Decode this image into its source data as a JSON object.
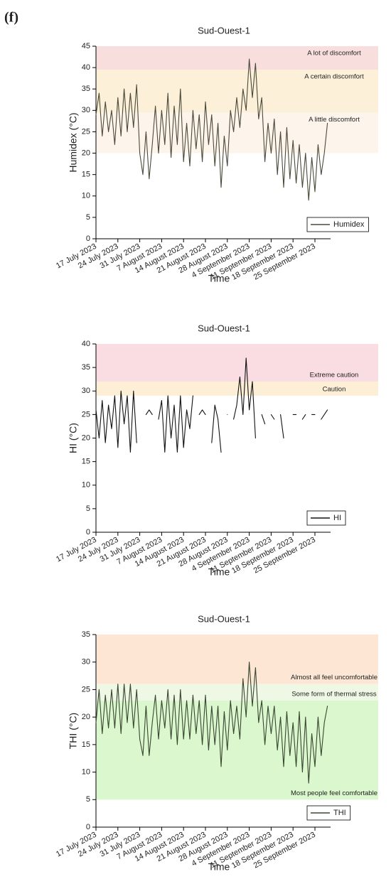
{
  "panel_label": "(f)",
  "chart_data": [
    {
      "type": "line",
      "title": "Sud-Ouest-1",
      "xlabel": "Time",
      "ylabel": "Humidex (°C)",
      "legend": "lower right",
      "x": [
        0,
        1,
        2,
        3,
        4,
        5,
        6,
        7,
        8,
        9,
        10,
        11,
        12,
        13,
        14,
        15,
        16,
        17,
        18,
        19,
        20,
        21,
        22,
        23,
        24,
        25,
        26,
        27,
        28,
        29,
        30,
        31,
        32,
        33,
        34,
        35,
        36,
        37,
        38,
        39,
        40,
        41,
        42,
        43,
        44,
        45,
        46,
        47,
        48,
        49,
        50,
        51,
        52,
        53,
        54,
        55,
        56,
        57,
        58,
        59,
        60,
        61,
        62,
        63,
        64,
        65,
        66,
        67,
        68,
        69,
        70,
        71,
        72,
        73,
        74
      ],
      "series": [
        {
          "name": "Humidex",
          "color": "#4a4a3a",
          "values": [
            29,
            34,
            24,
            32,
            25,
            30,
            22,
            33,
            24,
            35,
            25,
            34,
            26,
            36,
            20,
            15,
            25,
            14,
            22,
            31,
            20,
            30,
            22,
            34,
            19,
            31,
            22,
            35,
            18,
            27,
            17,
            30,
            21,
            29,
            18,
            32,
            22,
            29,
            17,
            27,
            12,
            24,
            17,
            30,
            25,
            33,
            26,
            35,
            30,
            42,
            33,
            41,
            28,
            33,
            18,
            27,
            20,
            28,
            15,
            25,
            12,
            26,
            14,
            23,
            13,
            22,
            12,
            20,
            9,
            19,
            11,
            22,
            15,
            20,
            27
          ]
        }
      ],
      "xlim": [
        0,
        75
      ],
      "ylim": [
        0,
        45
      ],
      "xticks": [
        {
          "value": 0,
          "label": "17 July 2023"
        },
        {
          "value": 7,
          "label": "24 July 2023"
        },
        {
          "value": 14,
          "label": "31 July 2023"
        },
        {
          "value": 21,
          "label": "7 August 2023"
        },
        {
          "value": 28,
          "label": "14 August 2023"
        },
        {
          "value": 35,
          "label": "21 August 2023"
        },
        {
          "value": 42,
          "label": "28 August 2023"
        },
        {
          "value": 49,
          "label": "4 September 2023"
        },
        {
          "value": 56,
          "label": "11 September 2023"
        },
        {
          "value": 63,
          "label": "18 September 2023"
        },
        {
          "value": 70,
          "label": "25 September 2023"
        }
      ],
      "yticks": [
        0,
        5,
        10,
        15,
        20,
        25,
        30,
        35,
        40,
        45
      ],
      "bands": [
        {
          "label": "A lot of discomfort",
          "from": 39.5,
          "to": 45,
          "color": "#f9dede"
        },
        {
          "label": "A certain discomfort",
          "from": 29.5,
          "to": 39.5,
          "color": "#fcf0d8"
        },
        {
          "label": "A little discomfort",
          "from": 20,
          "to": 29.5,
          "color": "#fdf5ec"
        }
      ]
    },
    {
      "type": "line",
      "title": "Sud-Ouest-1",
      "xlabel": "Time",
      "ylabel": "HI (°C)",
      "legend": "lower right",
      "x": [
        0,
        1,
        2,
        3,
        4,
        5,
        6,
        7,
        8,
        9,
        10,
        11,
        12,
        13,
        14,
        15,
        16,
        17,
        18,
        19,
        20,
        21,
        22,
        23,
        24,
        25,
        26,
        27,
        28,
        29,
        30,
        31,
        32,
        33,
        34,
        35,
        36,
        37,
        38,
        39,
        40,
        41,
        42,
        43,
        44,
        45,
        46,
        47,
        48,
        49,
        50,
        51,
        52,
        53,
        54,
        55,
        56,
        57,
        58,
        59,
        60,
        61,
        62,
        63,
        64,
        65,
        66,
        67,
        68,
        69,
        70,
        71,
        72,
        73,
        74
      ],
      "series": [
        {
          "name": "HI",
          "color": "#111111",
          "values": [
            26,
            20,
            28,
            19,
            27,
            22,
            29,
            18,
            30,
            23,
            29,
            17,
            30,
            19,
            null,
            null,
            25,
            26,
            25,
            null,
            24,
            28,
            17,
            29,
            20,
            27,
            17,
            29,
            18,
            26,
            22,
            29,
            null,
            25,
            26,
            25,
            null,
            19,
            27,
            24,
            17,
            null,
            25,
            null,
            24,
            27,
            33,
            25,
            37,
            26,
            32,
            20,
            null,
            25,
            23,
            null,
            25,
            24,
            null,
            25,
            20,
            null,
            null,
            25,
            25,
            null,
            24,
            25,
            null,
            25,
            25,
            null,
            24,
            25,
            26
          ]
        }
      ],
      "xlim": [
        0,
        75
      ],
      "ylim": [
        0,
        40
      ],
      "xticks": [
        {
          "value": 0,
          "label": "17 July 2023"
        },
        {
          "value": 7,
          "label": "24 July 2023"
        },
        {
          "value": 14,
          "label": "31 July 2023"
        },
        {
          "value": 21,
          "label": "7 August 2023"
        },
        {
          "value": 28,
          "label": "14 August 2023"
        },
        {
          "value": 35,
          "label": "21 August 2023"
        },
        {
          "value": 42,
          "label": "28 August 2023"
        },
        {
          "value": 49,
          "label": "4 September 2023"
        },
        {
          "value": 56,
          "label": "11 September 2023"
        },
        {
          "value": 63,
          "label": "18 September 2023"
        },
        {
          "value": 70,
          "label": "25 September 2023"
        }
      ],
      "yticks": [
        0,
        5,
        10,
        15,
        20,
        25,
        30,
        35,
        40
      ],
      "bands": [
        {
          "label": "Extreme caution",
          "from": 32,
          "to": 40,
          "color": "#fadde2"
        },
        {
          "label": "Caution",
          "from": 29,
          "to": 32,
          "color": "#fcefd6"
        }
      ]
    },
    {
      "type": "line",
      "title": "Sud-Ouest-1",
      "xlabel": "Time",
      "ylabel": "THI (°C)",
      "legend": "lower right",
      "x": [
        0,
        1,
        2,
        3,
        4,
        5,
        6,
        7,
        8,
        9,
        10,
        11,
        12,
        13,
        14,
        15,
        16,
        17,
        18,
        19,
        20,
        21,
        22,
        23,
        24,
        25,
        26,
        27,
        28,
        29,
        30,
        31,
        32,
        33,
        34,
        35,
        36,
        37,
        38,
        39,
        40,
        41,
        42,
        43,
        44,
        45,
        46,
        47,
        48,
        49,
        50,
        51,
        52,
        53,
        54,
        55,
        56,
        57,
        58,
        59,
        60,
        61,
        62,
        63,
        64,
        65,
        66,
        67,
        68,
        69,
        70,
        71,
        72,
        73,
        74
      ],
      "series": [
        {
          "name": "THI",
          "color": "#3a4632",
          "values": [
            19,
            25,
            17,
            24,
            18,
            25,
            18,
            26,
            17,
            26,
            19,
            26,
            18,
            25,
            16,
            13,
            22,
            13,
            19,
            24,
            16,
            23,
            18,
            25,
            16,
            24,
            15,
            25,
            16,
            23,
            16,
            24,
            17,
            23,
            15,
            24,
            14,
            22,
            15,
            22,
            11,
            21,
            14,
            23,
            17,
            22,
            16,
            27,
            20,
            30,
            22,
            29,
            19,
            23,
            15,
            22,
            17,
            22,
            14,
            20,
            11,
            21,
            13,
            19,
            11,
            21,
            10,
            20,
            8,
            17,
            11,
            20,
            13,
            19,
            22
          ]
        }
      ],
      "xlim": [
        0,
        75
      ],
      "ylim": [
        0,
        35
      ],
      "xticks": [
        {
          "value": 0,
          "label": "17 July 2023"
        },
        {
          "value": 7,
          "label": "24 July 2023"
        },
        {
          "value": 14,
          "label": "31 July 2023"
        },
        {
          "value": 21,
          "label": "7 August 2023"
        },
        {
          "value": 28,
          "label": "14 August 2023"
        },
        {
          "value": 35,
          "label": "21 August 2023"
        },
        {
          "value": 42,
          "label": "28 August 2023"
        },
        {
          "value": 49,
          "label": "4 September 2023"
        },
        {
          "value": 56,
          "label": "11 September 2023"
        },
        {
          "value": 63,
          "label": "18 September 2023"
        },
        {
          "value": 70,
          "label": "25 September 2023"
        }
      ],
      "yticks": [
        0,
        5,
        10,
        15,
        20,
        25,
        30,
        35
      ],
      "bands": [
        {
          "label": "Almost all feel uncomfortable",
          "from": 26,
          "to": 35,
          "color": "#fde7d4"
        },
        {
          "label": "Some form of thermal stress",
          "from": 23,
          "to": 26,
          "color": "#eff8e4"
        },
        {
          "label": "Most people feel comfortable",
          "from": 5,
          "to": 23,
          "color": "#daf7cd"
        }
      ]
    }
  ]
}
